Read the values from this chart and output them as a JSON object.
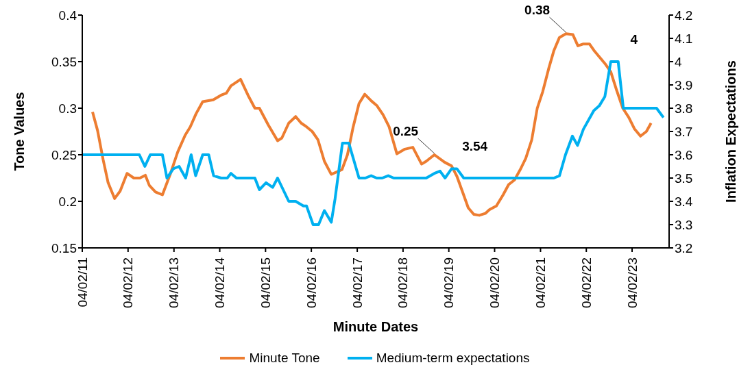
{
  "chart_data": {
    "type": "line",
    "xlabel": "Minute Dates",
    "ylabel": "Tone Values",
    "y2label": "Inflation Expectations",
    "legend": "bottom",
    "grid": false,
    "xlim": [
      "2011-02-04",
      "2023-11-26"
    ],
    "xticks": [
      {
        "value": "2011-02-04",
        "label": "04/02/11"
      },
      {
        "value": "2012-02-04",
        "label": "04/02/12"
      },
      {
        "value": "2013-02-04",
        "label": "04/02/13"
      },
      {
        "value": "2014-02-04",
        "label": "04/02/14"
      },
      {
        "value": "2015-02-04",
        "label": "04/02/15"
      },
      {
        "value": "2016-02-04",
        "label": "04/02/16"
      },
      {
        "value": "2017-02-04",
        "label": "04/02/17"
      },
      {
        "value": "2018-02-04",
        "label": "04/02/18"
      },
      {
        "value": "2019-02-04",
        "label": "04/02/19"
      },
      {
        "value": "2020-02-04",
        "label": "04/02/20"
      },
      {
        "value": "2021-02-04",
        "label": "04/02/21"
      },
      {
        "value": "2022-02-04",
        "label": "04/02/22"
      },
      {
        "value": "2023-02-04",
        "label": "04/02/23"
      }
    ],
    "ylim": [
      0.15,
      0.4
    ],
    "yticks": [
      0.15,
      0.2,
      0.25,
      0.3,
      0.35,
      0.4
    ],
    "y2lim": [
      3.2,
      4.2
    ],
    "y2ticks": [
      3.2,
      3.3,
      3.4,
      3.5,
      3.6,
      3.7,
      3.8,
      3.9,
      4,
      4.1,
      4.2
    ],
    "series": [
      {
        "name": "Minute Tone",
        "color": "#ed7d31",
        "x": [
          "2011-04-27",
          "2011-06-06",
          "2011-07-20",
          "2011-08-29",
          "2011-10-20",
          "2011-12-03",
          "2012-01-27",
          "2012-03-21",
          "2012-05-08",
          "2012-06-21",
          "2012-07-23",
          "2012-09-10",
          "2012-11-04",
          "2013-01-05",
          "2013-03-06",
          "2013-05-04",
          "2013-06-14",
          "2013-07-30",
          "2013-09-21",
          "2013-12-14",
          "2014-02-15",
          "2014-03-28",
          "2014-05-04",
          "2014-07-20",
          "2014-09-17",
          "2014-11-11",
          "2014-12-17",
          "2015-02-26",
          "2015-05-11",
          "2015-06-14",
          "2015-08-08",
          "2015-10-02",
          "2015-11-15",
          "2015-12-28",
          "2016-02-11",
          "2016-03-28",
          "2016-05-18",
          "2016-07-12",
          "2016-10-05",
          "2016-11-18",
          "2017-01-01",
          "2017-02-18",
          "2017-04-05",
          "2017-05-26",
          "2017-07-09",
          "2017-08-29",
          "2017-10-16",
          "2017-12-17",
          "2018-02-18",
          "2018-04-23",
          "2018-07-02",
          "2018-08-08",
          "2018-10-12",
          "2019-01-01",
          "2019-02-26",
          "2019-04-09",
          "2019-05-22",
          "2019-07-09",
          "2019-08-22",
          "2019-10-05",
          "2019-11-22",
          "2019-12-24",
          "2020-02-18",
          "2020-04-12",
          "2020-05-26",
          "2020-07-12",
          "2020-08-26",
          "2020-10-09",
          "2020-11-26",
          "2021-01-09",
          "2021-02-22",
          "2021-04-09",
          "2021-05-22",
          "2021-07-05",
          "2021-08-26",
          "2021-10-20",
          "2021-11-29",
          "2022-01-12",
          "2022-03-01",
          "2022-04-12",
          "2022-07-02",
          "2022-08-18",
          "2022-10-02",
          "2022-11-22",
          "2023-01-09",
          "2023-02-22",
          "2023-04-12",
          "2023-05-29",
          "2023-07-05"
        ],
        "values": [
          0.296,
          0.276,
          0.245,
          0.22,
          0.203,
          0.211,
          0.23,
          0.225,
          0.225,
          0.228,
          0.217,
          0.21,
          0.207,
          0.229,
          0.253,
          0.271,
          0.28,
          0.294,
          0.307,
          0.309,
          0.314,
          0.316,
          0.324,
          0.331,
          0.314,
          0.3,
          0.3,
          0.282,
          0.265,
          0.268,
          0.284,
          0.291,
          0.284,
          0.28,
          0.275,
          0.266,
          0.243,
          0.229,
          0.234,
          0.25,
          0.279,
          0.305,
          0.315,
          0.308,
          0.303,
          0.293,
          0.28,
          0.251,
          0.256,
          0.258,
          0.24,
          0.243,
          0.25,
          0.242,
          0.238,
          0.227,
          0.211,
          0.193,
          0.186,
          0.185,
          0.187,
          0.191,
          0.195,
          0.207,
          0.218,
          0.223,
          0.234,
          0.246,
          0.266,
          0.3,
          0.318,
          0.342,
          0.362,
          0.376,
          0.38,
          0.379,
          0.367,
          0.369,
          0.369,
          0.361,
          0.348,
          0.339,
          0.32,
          0.3,
          0.29,
          0.278,
          0.27,
          0.275,
          0.284
        ],
        "value_labels": [
          null,
          null,
          null,
          null,
          null,
          null,
          null,
          null,
          null,
          null,
          null,
          null,
          null,
          null,
          null,
          null,
          null,
          null,
          null,
          null,
          null,
          null,
          null,
          null,
          null,
          null,
          null,
          null,
          null,
          null,
          null,
          null,
          null,
          null,
          null,
          null,
          null,
          null,
          null,
          null,
          null,
          null,
          null,
          null,
          null,
          null,
          null,
          null,
          null,
          null,
          null,
          null,
          "0.25",
          null,
          null,
          null,
          null,
          null,
          null,
          null,
          null,
          null,
          null,
          null,
          null,
          null,
          null,
          null,
          null,
          null,
          null,
          null,
          null,
          null,
          "0.38",
          null,
          null,
          null,
          null,
          null,
          null,
          null,
          null,
          null,
          null,
          null,
          null,
          null,
          null
        ]
      },
      {
        "name": "Medium-term expectations",
        "color": "#00b0f0",
        "axis": "y2",
        "x": [
          "2011-02-04",
          "2012-05-04",
          "2012-06-17",
          "2012-07-30",
          "2012-11-04",
          "2012-12-10",
          "2013-01-30",
          "2013-03-17",
          "2013-05-08",
          "2013-06-21",
          "2013-07-27",
          "2013-09-21",
          "2013-11-08",
          "2013-12-17",
          "2014-02-15",
          "2014-04-05",
          "2014-05-04",
          "2014-06-17",
          "2014-11-11",
          "2014-12-17",
          "2015-02-08",
          "2015-04-02",
          "2015-05-11",
          "2015-08-08",
          "2015-10-02",
          "2015-12-03",
          "2015-12-28",
          "2016-02-18",
          "2016-04-02",
          "2016-05-18",
          "2016-07-12",
          "2016-08-11",
          "2016-10-09",
          "2016-11-29",
          "2017-02-18",
          "2017-04-09",
          "2017-05-26",
          "2017-07-09",
          "2017-08-22",
          "2017-10-09",
          "2017-11-22",
          "2018-08-08",
          "2018-10-12",
          "2018-11-26",
          "2019-01-05",
          "2019-02-26",
          "2019-04-09",
          "2019-06-03",
          "2021-05-22",
          "2021-07-05",
          "2021-08-22",
          "2021-10-16",
          "2021-11-26",
          "2022-01-12",
          "2022-04-05",
          "2022-05-18",
          "2022-07-02",
          "2022-08-18",
          "2022-10-16",
          "2022-11-26",
          "2023-08-18",
          "2023-10-12"
        ],
        "values": [
          3.6,
          3.6,
          3.55,
          3.6,
          3.6,
          3.5,
          3.54,
          3.55,
          3.5,
          3.6,
          3.51,
          3.6,
          3.6,
          3.51,
          3.5,
          3.5,
          3.52,
          3.5,
          3.5,
          3.45,
          3.48,
          3.46,
          3.5,
          3.4,
          3.4,
          3.38,
          3.38,
          3.3,
          3.3,
          3.36,
          3.31,
          3.41,
          3.65,
          3.65,
          3.5,
          3.5,
          3.51,
          3.5,
          3.5,
          3.51,
          3.5,
          3.5,
          3.52,
          3.53,
          3.5,
          3.54,
          3.54,
          3.5,
          3.5,
          3.51,
          3.6,
          3.68,
          3.64,
          3.71,
          3.79,
          3.81,
          3.85,
          4,
          4,
          3.8,
          3.8,
          3.76
        ],
        "value_labels": [
          null,
          null,
          null,
          null,
          null,
          null,
          null,
          null,
          null,
          null,
          null,
          null,
          null,
          null,
          null,
          null,
          null,
          null,
          null,
          null,
          null,
          null,
          null,
          null,
          null,
          null,
          null,
          null,
          null,
          null,
          null,
          null,
          null,
          null,
          null,
          null,
          null,
          null,
          null,
          null,
          null,
          null,
          null,
          null,
          null,
          "3.54",
          null,
          null,
          null,
          null,
          null,
          null,
          null,
          null,
          null,
          null,
          null,
          "4",
          null,
          null,
          null,
          null
        ]
      }
    ]
  }
}
